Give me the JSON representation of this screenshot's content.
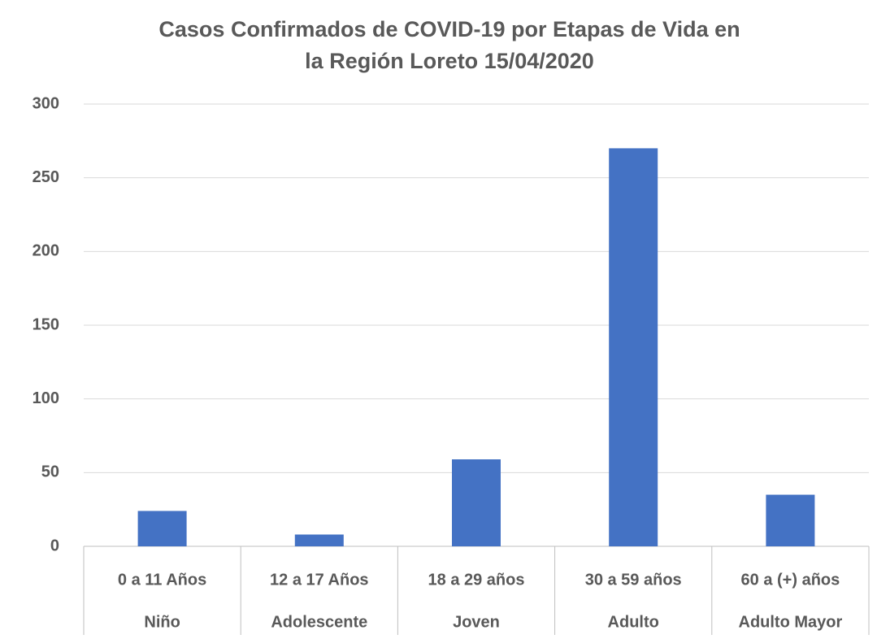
{
  "chart_data": {
    "type": "bar",
    "title": [
      "Casos Confirmados de COVID-19 por Etapas de Vida en",
      "la Región Loreto 15/04/2020"
    ],
    "categories": [
      "0 a 11 Años",
      "12 a 17 Años",
      "18 a 29 años",
      "30 a 59 años",
      "60 a (+) años"
    ],
    "category_groups": [
      "Niño",
      "Adolescente",
      "Joven",
      "Adulto",
      "Adulto Mayor"
    ],
    "values": [
      24,
      8,
      59,
      270,
      35
    ],
    "color": "#4472c4",
    "ylim": [
      0,
      300
    ],
    "yticks": [
      0,
      50,
      100,
      150,
      200,
      250,
      300
    ],
    "grid": true
  }
}
